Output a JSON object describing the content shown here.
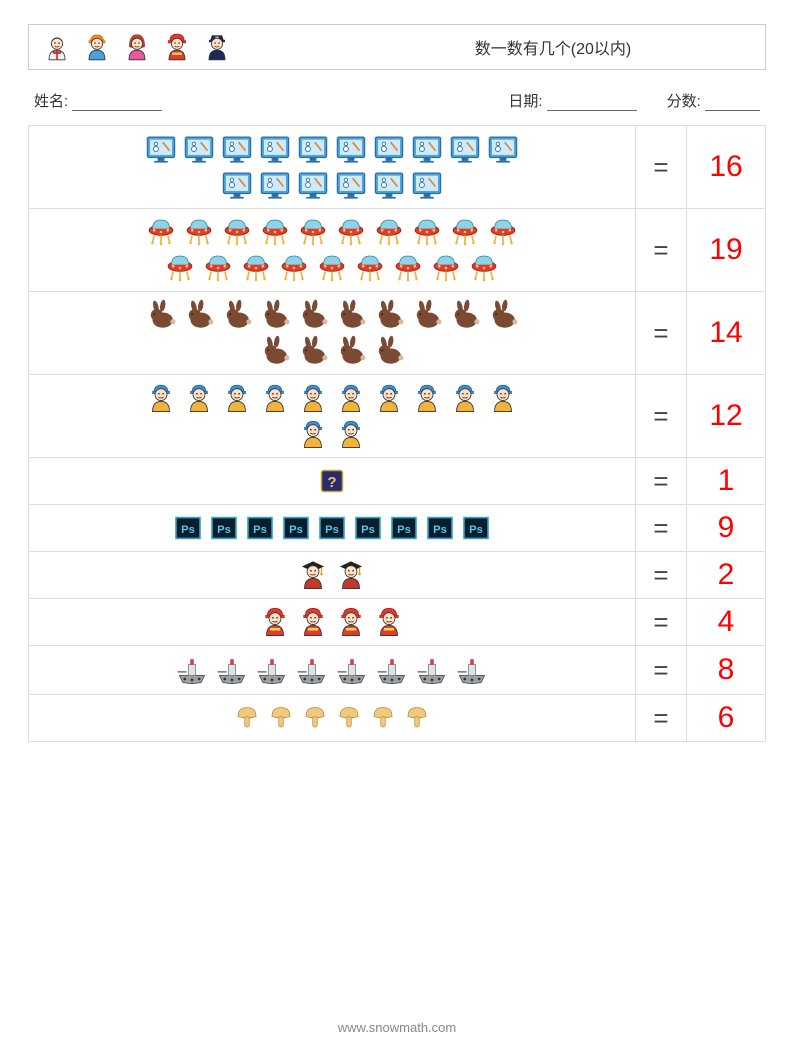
{
  "title": "数一数有几个(20以内)",
  "labels": {
    "name": "姓名:",
    "date": "日期:",
    "score": "分数:"
  },
  "header_people": [
    "waiter",
    "worker_orange",
    "girl",
    "fireman",
    "police"
  ],
  "answer_color": "#ff0000",
  "equals_color": "#444444",
  "icon_size_small": 30,
  "icon_size_med": 34,
  "rows": [
    {
      "icon": "monitor_whiteboard",
      "count": 16,
      "per_row": 10,
      "size": 34,
      "answer": "16"
    },
    {
      "icon": "ufo",
      "count": 19,
      "per_row": 10,
      "size": 34,
      "answer": "19"
    },
    {
      "icon": "rabbit",
      "count": 14,
      "per_row": 10,
      "size": 34,
      "answer": "14"
    },
    {
      "icon": "worker_blue",
      "count": 12,
      "per_row": 10,
      "size": 34,
      "answer": "12"
    },
    {
      "icon": "question_box",
      "count": 1,
      "per_row": 10,
      "size": 30,
      "answer": "1"
    },
    {
      "icon": "ps_box",
      "count": 9,
      "per_row": 10,
      "size": 32,
      "answer": "9"
    },
    {
      "icon": "graduate",
      "count": 2,
      "per_row": 10,
      "size": 34,
      "answer": "2"
    },
    {
      "icon": "fireman_small",
      "count": 4,
      "per_row": 10,
      "size": 34,
      "answer": "4"
    },
    {
      "icon": "ship",
      "count": 8,
      "per_row": 10,
      "size": 36,
      "answer": "8"
    },
    {
      "icon": "mushroom",
      "count": 6,
      "per_row": 10,
      "size": 30,
      "answer": "6"
    }
  ],
  "footer": "www.snowmath.com"
}
